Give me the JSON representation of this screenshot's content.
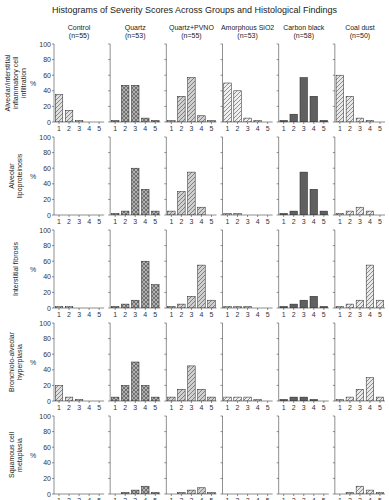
{
  "chart_data": {
    "type": "bar",
    "title": "Histograms of Severity Scores Across Groups and Histological Findings",
    "categories": [
      1,
      2,
      3,
      4,
      5
    ],
    "ylim": [
      0,
      100
    ],
    "yticks": [
      0,
      20,
      40,
      60,
      80,
      100
    ],
    "ylabel": "%",
    "grid": false,
    "row_labels": [
      "Alveolar/interstitial\ninflammatory cell\ninfiltration",
      "Alveolar\nlipoproteinosis",
      "Interstitial fibrosis",
      "Bronchiolo-alveolar\nhyperplasia",
      "Squamous cell\nmetaplasia"
    ],
    "series": [
      {
        "name": "Control\n(n=55)",
        "color": "#e0e0e0",
        "values": [
          [
            35,
            15,
            2,
            0,
            0
          ],
          [
            0,
            0,
            0,
            0,
            0
          ],
          [
            2,
            2,
            0,
            0,
            0
          ],
          [
            20,
            5,
            2,
            0,
            0
          ],
          [
            0,
            0,
            0,
            0,
            0
          ]
        ]
      },
      {
        "name": "Quartz\n(n=53)",
        "color": "#b0b0b0",
        "values": [
          [
            2,
            47,
            47,
            5,
            2
          ],
          [
            2,
            5,
            60,
            33,
            5
          ],
          [
            2,
            5,
            10,
            60,
            30
          ],
          [
            5,
            20,
            50,
            20,
            5
          ],
          [
            0,
            2,
            5,
            10,
            2
          ]
        ]
      },
      {
        "name": "Quartz+PVNO\n(n=55)",
        "color": "#d0d0d0",
        "values": [
          [
            2,
            33,
            57,
            8,
            2
          ],
          [
            5,
            30,
            55,
            10,
            0
          ],
          [
            2,
            5,
            15,
            55,
            10
          ],
          [
            5,
            15,
            45,
            15,
            5
          ],
          [
            0,
            2,
            5,
            8,
            2
          ]
        ]
      },
      {
        "name": "Amorphous SiO2\n(n=53)",
        "color": "#f0f0f0",
        "values": [
          [
            50,
            40,
            5,
            2,
            0
          ],
          [
            2,
            2,
            0,
            0,
            0
          ],
          [
            2,
            2,
            2,
            0,
            0
          ],
          [
            5,
            5,
            5,
            2,
            0
          ],
          [
            0,
            0,
            0,
            0,
            0
          ]
        ]
      },
      {
        "name": "Carbon black\n(n=58)",
        "color": "#606060",
        "values": [
          [
            2,
            10,
            57,
            33,
            2
          ],
          [
            2,
            5,
            55,
            33,
            5
          ],
          [
            2,
            5,
            10,
            15,
            2
          ],
          [
            2,
            5,
            5,
            2,
            0
          ],
          [
            0,
            0,
            0,
            0,
            0
          ]
        ]
      },
      {
        "name": "Coal dust\n(n=50)",
        "color": "#e8e8e8",
        "values": [
          [
            60,
            33,
            5,
            2,
            0
          ],
          [
            2,
            5,
            10,
            5,
            0
          ],
          [
            2,
            5,
            10,
            55,
            10
          ],
          [
            2,
            5,
            15,
            30,
            5
          ],
          [
            0,
            2,
            10,
            5,
            2
          ]
        ]
      }
    ]
  }
}
